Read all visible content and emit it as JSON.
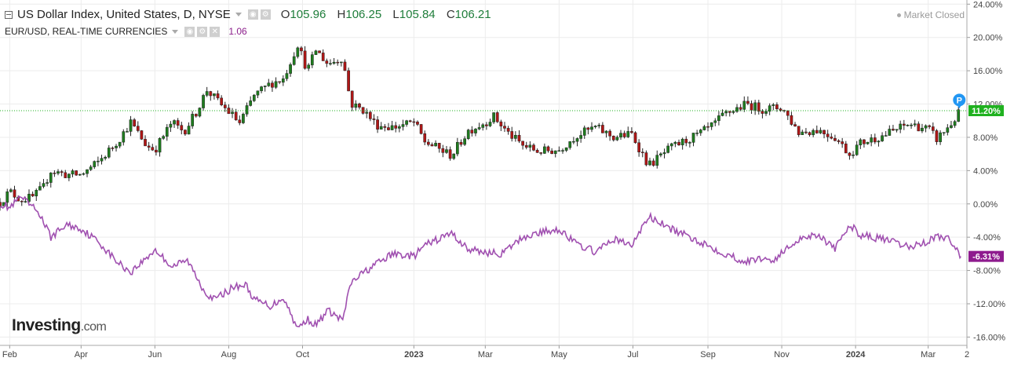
{
  "legend": {
    "primary_name": "US Dollar Index, United States, D, NYSE",
    "open_label": "O",
    "open": "105.96",
    "high_label": "H",
    "high": "106.25",
    "low_label": "L",
    "low": "105.84",
    "close_label": "C",
    "close": "106.21",
    "secondary_name": "EUR/USD, REAL-TIME CURRENCIES",
    "secondary_value": "1.06"
  },
  "status": {
    "market": "Market Closed"
  },
  "branding": {
    "logo_main": "Investing",
    "logo_suffix": ".com"
  },
  "colors": {
    "up_candle": "#1e7d1e",
    "down_candle": "#b11616",
    "compare_line": "#a050b0",
    "last_dxy_badge": "#1fb11f",
    "last_eur_badge": "#8e1b8e",
    "marker": "#2196f3"
  },
  "chart_data": {
    "type": "line",
    "chart_style": "candlestick with comparison line, percent scale",
    "y_axis": {
      "unit": "%",
      "ylim": [
        -17.0,
        24.5
      ],
      "tick_labels": [
        "24.00%",
        "20.00%",
        "16.00%",
        "12.00%",
        "8.00%",
        "4.00%",
        "0.00%",
        "-4.00%",
        "-8.00%",
        "-12.00%",
        "-16.00%"
      ],
      "tick_values": [
        24,
        20,
        16,
        12,
        8,
        4,
        0,
        -4,
        -8,
        -12,
        -16
      ],
      "position": "right"
    },
    "x_axis": {
      "tick_labels": [
        "Feb",
        "Apr",
        "Jun",
        "Aug",
        "Oct",
        "2023",
        "Mar",
        "May",
        "Jul",
        "Sep",
        "Nov",
        "2024",
        "Mar",
        "2"
      ],
      "tick_bold": [
        false,
        false,
        false,
        false,
        false,
        true,
        false,
        false,
        false,
        false,
        false,
        true,
        false,
        false
      ],
      "tick_dates": [
        "2022-02-01",
        "2022-04-01",
        "2022-06-01",
        "2022-08-01",
        "2022-10-01",
        "2023-01-01",
        "2023-03-01",
        "2023-05-01",
        "2023-07-01",
        "2023-09-01",
        "2023-11-01",
        "2024-01-01",
        "2024-03-01",
        "2024-04-02"
      ],
      "range": [
        "2022-01-24",
        "2024-04-02"
      ]
    },
    "grid": true,
    "series": [
      {
        "name": "US Dollar Index, United States, D, NYSE",
        "style": "candlestick",
        "last_label": "11.20%",
        "last_value": 11.2,
        "points": [
          [
            "2022-01-24",
            0.2
          ],
          [
            "2022-02-01",
            1.5
          ],
          [
            "2022-02-10",
            0.5
          ],
          [
            "2022-02-20",
            0.8
          ],
          [
            "2022-03-01",
            2.0
          ],
          [
            "2022-03-07",
            4.0
          ],
          [
            "2022-03-20",
            3.5
          ],
          [
            "2022-04-01",
            3.5
          ],
          [
            "2022-04-15",
            5.0
          ],
          [
            "2022-05-01",
            7.5
          ],
          [
            "2022-05-12",
            9.8
          ],
          [
            "2022-05-25",
            7.0
          ],
          [
            "2022-06-01",
            6.5
          ],
          [
            "2022-06-15",
            9.8
          ],
          [
            "2022-06-25",
            8.7
          ],
          [
            "2022-07-05",
            11.0
          ],
          [
            "2022-07-14",
            13.7
          ],
          [
            "2022-07-25",
            12.0
          ],
          [
            "2022-08-05",
            10.5
          ],
          [
            "2022-08-10",
            9.7
          ],
          [
            "2022-08-22",
            13.0
          ],
          [
            "2022-09-05",
            14.5
          ],
          [
            "2022-09-15",
            15.0
          ],
          [
            "2022-09-27",
            19.2
          ],
          [
            "2022-10-05",
            16.0
          ],
          [
            "2022-10-12",
            18.5
          ],
          [
            "2022-10-22",
            16.8
          ],
          [
            "2022-11-03",
            17.6
          ],
          [
            "2022-11-10",
            12.0
          ],
          [
            "2022-11-20",
            11.3
          ],
          [
            "2022-12-01",
            9.5
          ],
          [
            "2022-12-15",
            9.2
          ],
          [
            "2023-01-01",
            9.8
          ],
          [
            "2023-01-10",
            7.5
          ],
          [
            "2023-02-01",
            5.8
          ],
          [
            "2023-02-15",
            8.8
          ],
          [
            "2023-03-01",
            9.8
          ],
          [
            "2023-03-08",
            10.5
          ],
          [
            "2023-03-20",
            8.5
          ],
          [
            "2023-04-01",
            7.0
          ],
          [
            "2023-04-14",
            6.3
          ],
          [
            "2023-05-01",
            6.5
          ],
          [
            "2023-05-15",
            8.2
          ],
          [
            "2023-05-31",
            9.2
          ],
          [
            "2023-06-15",
            8.0
          ],
          [
            "2023-06-30",
            8.4
          ],
          [
            "2023-07-14",
            4.6
          ],
          [
            "2023-08-01",
            6.7
          ],
          [
            "2023-08-25",
            8.4
          ],
          [
            "2023-09-05",
            9.4
          ],
          [
            "2023-09-15",
            10.8
          ],
          [
            "2023-10-03",
            12.0
          ],
          [
            "2023-10-15",
            11.4
          ],
          [
            "2023-10-25",
            11.5
          ],
          [
            "2023-11-01",
            11.6
          ],
          [
            "2023-11-15",
            8.6
          ],
          [
            "2023-12-01",
            8.9
          ],
          [
            "2023-12-15",
            8.0
          ],
          [
            "2023-12-27",
            6.0
          ],
          [
            "2024-01-05",
            7.3
          ],
          [
            "2024-01-25",
            8.3
          ],
          [
            "2024-02-14",
            9.6
          ],
          [
            "2024-03-01",
            9.0
          ],
          [
            "2024-03-08",
            7.8
          ],
          [
            "2024-03-20",
            9.6
          ],
          [
            "2024-03-28",
            11.2
          ]
        ]
      },
      {
        "name": "EUR/USD, REAL-TIME CURRENCIES",
        "style": "line",
        "last_label": "-6.31%",
        "last_value": -6.31,
        "points": [
          [
            "2022-01-24",
            0.0
          ],
          [
            "2022-02-01",
            -0.5
          ],
          [
            "2022-02-10",
            0.8
          ],
          [
            "2022-02-25",
            -1.0
          ],
          [
            "2022-03-07",
            -4.0
          ],
          [
            "2022-03-20",
            -2.5
          ],
          [
            "2022-04-01",
            -3.0
          ],
          [
            "2022-04-15",
            -4.5
          ],
          [
            "2022-05-01",
            -7.0
          ],
          [
            "2022-05-12",
            -8.2
          ],
          [
            "2022-05-25",
            -6.5
          ],
          [
            "2022-06-01",
            -5.5
          ],
          [
            "2022-06-15",
            -7.5
          ],
          [
            "2022-06-28",
            -6.8
          ],
          [
            "2022-07-12",
            -10.5
          ],
          [
            "2022-07-20",
            -11.5
          ],
          [
            "2022-08-05",
            -10.0
          ],
          [
            "2022-08-15",
            -9.7
          ],
          [
            "2022-08-22",
            -11.5
          ],
          [
            "2022-09-05",
            -12.3
          ],
          [
            "2022-09-15",
            -11.2
          ],
          [
            "2022-09-27",
            -15.0
          ],
          [
            "2022-10-05",
            -13.8
          ],
          [
            "2022-10-12",
            -14.6
          ],
          [
            "2022-10-22",
            -12.8
          ],
          [
            "2022-11-03",
            -14.0
          ],
          [
            "2022-11-10",
            -9.5
          ],
          [
            "2022-11-20",
            -8.3
          ],
          [
            "2022-12-01",
            -7.2
          ],
          [
            "2022-12-15",
            -6.0
          ],
          [
            "2023-01-01",
            -6.3
          ],
          [
            "2023-01-10",
            -5.0
          ],
          [
            "2023-02-01",
            -3.5
          ],
          [
            "2023-02-15",
            -5.5
          ],
          [
            "2023-03-01",
            -5.8
          ],
          [
            "2023-03-15",
            -6.0
          ],
          [
            "2023-04-01",
            -4.0
          ],
          [
            "2023-04-14",
            -3.5
          ],
          [
            "2023-05-01",
            -3.0
          ],
          [
            "2023-05-15",
            -4.8
          ],
          [
            "2023-06-01",
            -5.8
          ],
          [
            "2023-06-15",
            -4.2
          ],
          [
            "2023-06-30",
            -5.0
          ],
          [
            "2023-07-14",
            -1.5
          ],
          [
            "2023-08-01",
            -3.0
          ],
          [
            "2023-08-25",
            -4.5
          ],
          [
            "2023-09-15",
            -6.0
          ],
          [
            "2023-10-03",
            -7.0
          ],
          [
            "2023-10-15",
            -6.5
          ],
          [
            "2023-10-25",
            -6.8
          ],
          [
            "2023-11-15",
            -4.2
          ],
          [
            "2023-12-01",
            -3.6
          ],
          [
            "2023-12-15",
            -5.5
          ],
          [
            "2023-12-27",
            -2.5
          ],
          [
            "2024-01-05",
            -3.7
          ],
          [
            "2024-01-25",
            -4.3
          ],
          [
            "2024-02-14",
            -5.2
          ],
          [
            "2024-03-01",
            -4.5
          ],
          [
            "2024-03-08",
            -3.8
          ],
          [
            "2024-03-20",
            -4.4
          ],
          [
            "2024-03-28",
            -6.31
          ]
        ]
      }
    ],
    "reference_line": {
      "value": 11.2,
      "style": "dotted"
    },
    "marker_label": "P",
    "marker_value": 12.3
  }
}
